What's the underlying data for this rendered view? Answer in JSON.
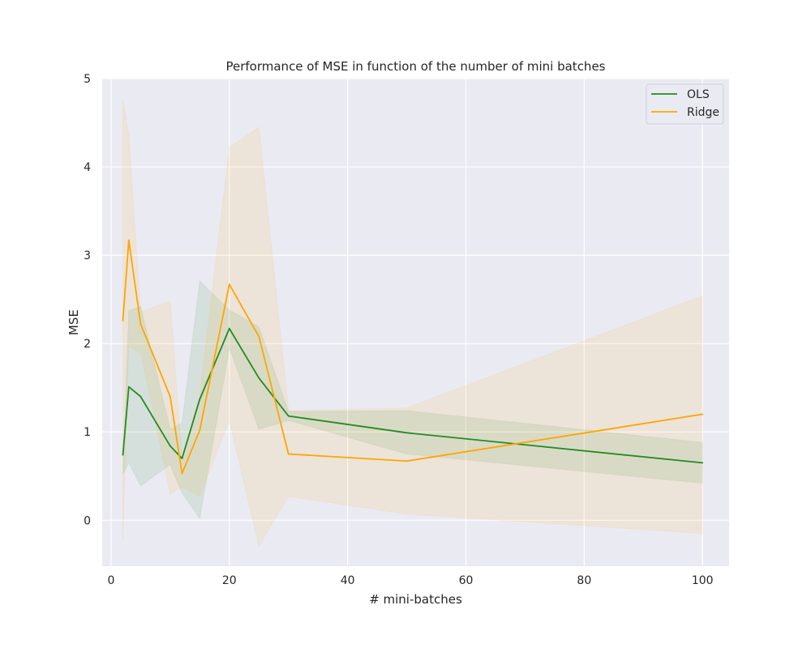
{
  "chart_data": {
    "type": "line",
    "title": "Performance of MSE in function of the number of mini batches",
    "xlabel": "# mini-batches",
    "ylabel": "MSE",
    "xlim": [
      -1.5,
      104.5
    ],
    "ylim": [
      -0.52,
      5.0
    ],
    "xticks": [
      0,
      20,
      40,
      60,
      80,
      100
    ],
    "yticks": [
      0,
      1,
      2,
      3,
      4,
      5
    ],
    "xtick_labels": [
      "0",
      "20",
      "40",
      "60",
      "80",
      "100"
    ],
    "ytick_labels": [
      "0",
      "1",
      "2",
      "3",
      "4",
      "5"
    ],
    "grid": true,
    "legend_position": "top-right",
    "x": [
      2,
      3,
      5,
      10,
      12,
      15,
      20,
      25,
      30,
      50,
      100
    ],
    "series": [
      {
        "name": "OLS",
        "color": "#228b22",
        "values": [
          0.74,
          1.51,
          1.4,
          0.84,
          0.7,
          1.37,
          2.17,
          1.61,
          1.18,
          0.99,
          0.65
        ],
        "ci_lower": [
          0.52,
          0.65,
          0.39,
          0.63,
          0.31,
          0.02,
          1.95,
          1.03,
          1.13,
          0.75,
          0.42
        ],
        "ci_upper": [
          0.52,
          2.37,
          2.42,
          1.03,
          1.1,
          2.71,
          2.38,
          2.19,
          1.23,
          1.24,
          0.88
        ]
      },
      {
        "name": "Ridge",
        "color": "#ffa500",
        "values": [
          2.26,
          3.17,
          2.22,
          1.4,
          0.53,
          1.02,
          2.67,
          2.08,
          0.75,
          0.67,
          1.2
        ],
        "ci_lower": [
          -0.23,
          1.96,
          1.9,
          0.3,
          0.38,
          0.27,
          1.13,
          -0.29,
          0.27,
          0.07,
          -0.15
        ],
        "ci_upper": [
          4.75,
          4.36,
          2.36,
          2.48,
          0.7,
          1.42,
          4.22,
          4.45,
          1.24,
          1.27,
          2.54
        ]
      }
    ]
  }
}
